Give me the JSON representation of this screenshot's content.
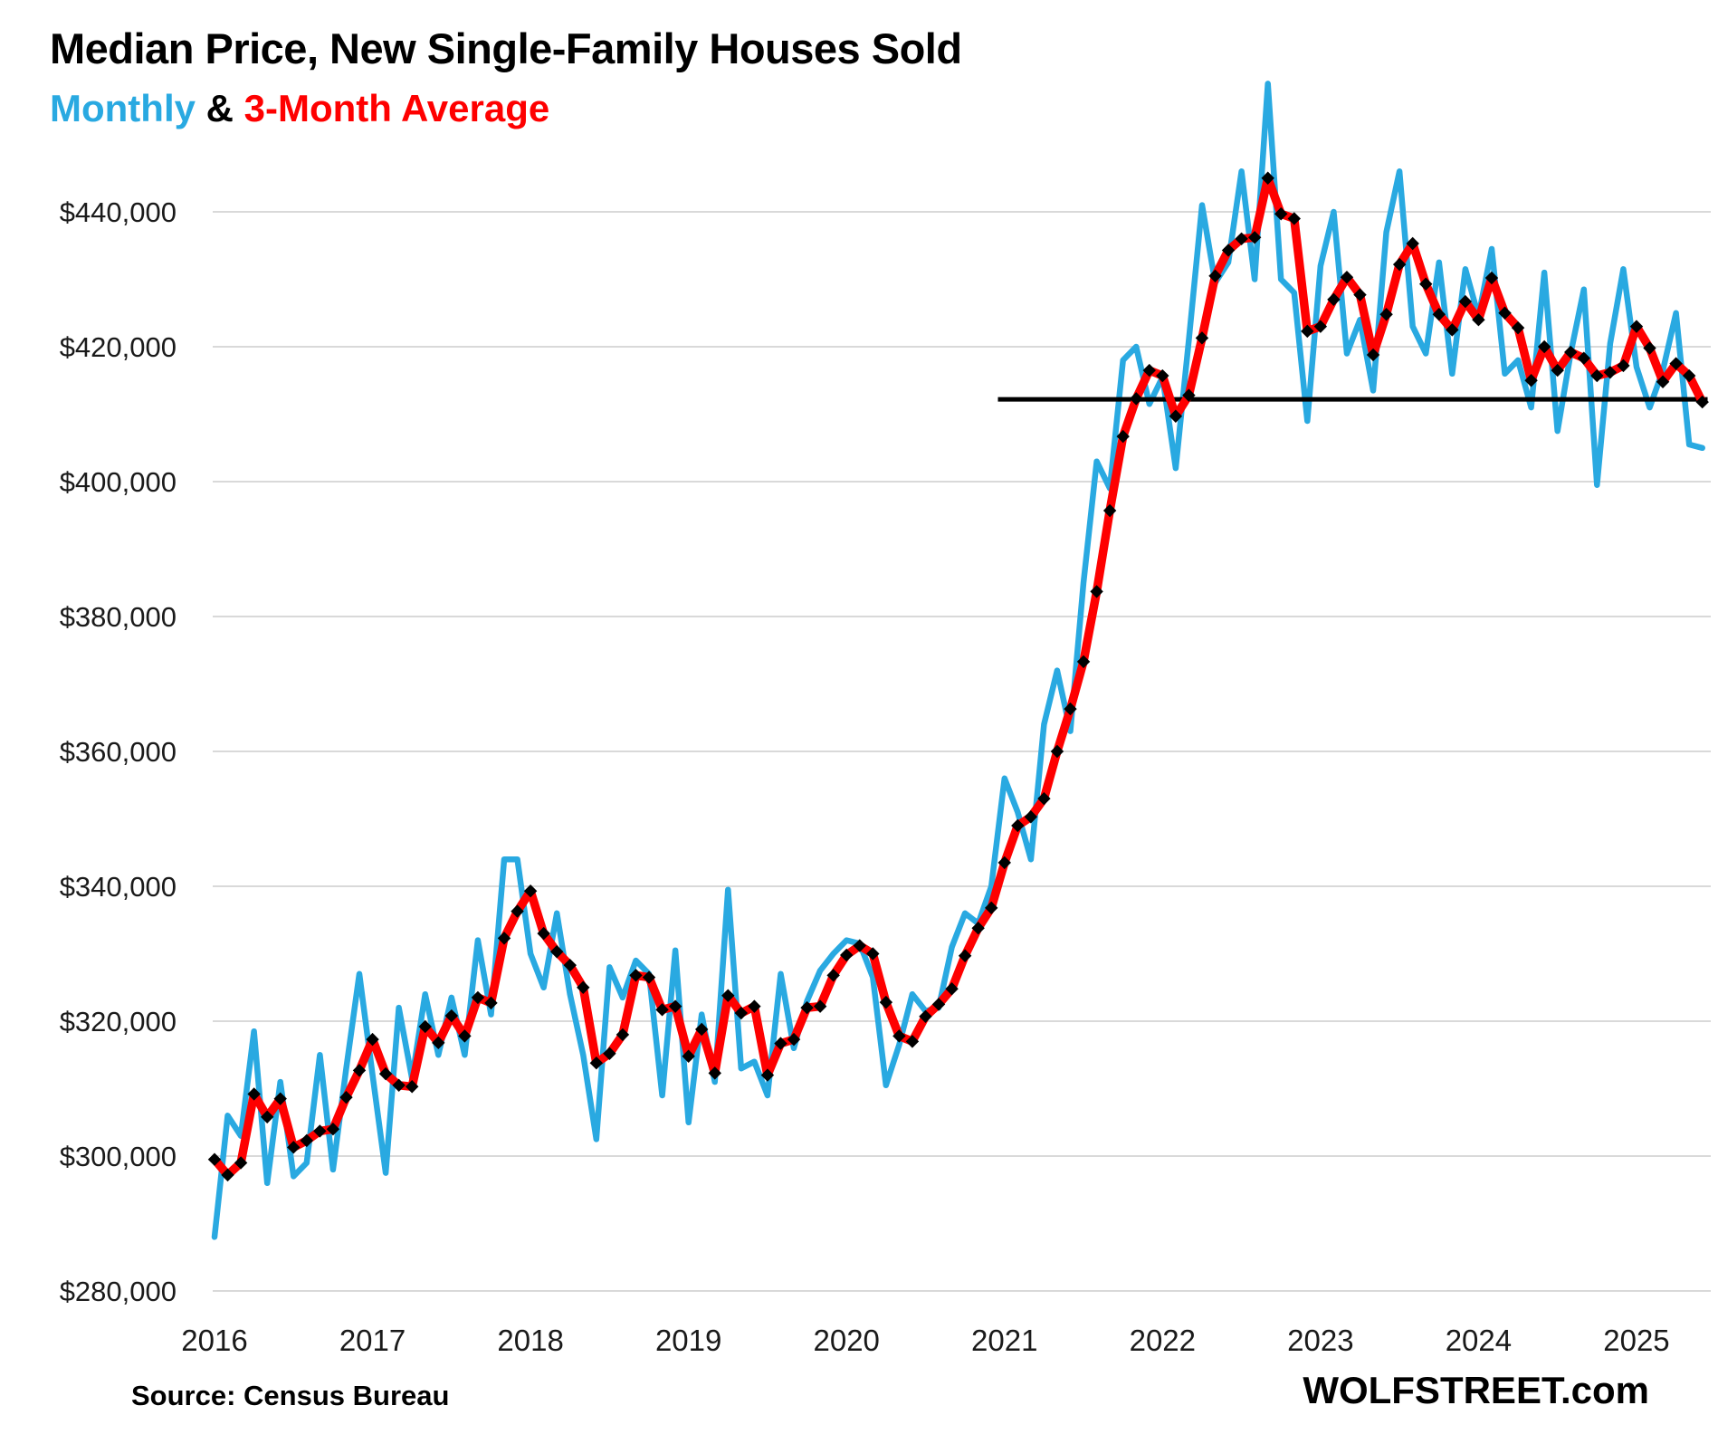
{
  "header": {
    "title": "Median Price, New Single-Family Houses Sold",
    "subtitle_monthly": "Monthly",
    "subtitle_separator": " & ",
    "subtitle_average": "3-Month Average"
  },
  "footer": {
    "source_note": "Source: Census Bureau",
    "branding": "WOLFSTREET.com"
  },
  "colors": {
    "monthly_line": "#29a9e1",
    "average_line": "#fe0000",
    "marker": "#000000",
    "gridline": "#d9d9d9",
    "reference_line": "#000000",
    "text": "#1a1a1a"
  },
  "chart_data": {
    "type": "line",
    "title": "Median Price, New Single-Family Houses Sold",
    "subtitle": "Monthly & 3-Month Average",
    "x_start": "2016-01",
    "x_end": "2025-06",
    "months_per_point": 1,
    "x_tick_labels": [
      "2016",
      "2017",
      "2018",
      "2019",
      "2020",
      "2021",
      "2022",
      "2023",
      "2024",
      "2025"
    ],
    "y_axis": {
      "tick_values_thousands": [
        280,
        300,
        320,
        340,
        360,
        380,
        400,
        420,
        440
      ],
      "tick_labels": [
        "$280,000",
        "$300,000",
        "$320,000",
        "$340,000",
        "$360,000",
        "$380,000",
        "$400,000",
        "$420,000",
        "$440,000"
      ],
      "ylim_thousands": [
        280,
        462
      ],
      "grid": true
    },
    "legend_position": "subtitle-inline",
    "reference_line": {
      "value_thousands": 412.2,
      "from_month_index": 59.5,
      "to_month_index": 113.4
    },
    "series": [
      {
        "name": "Monthly",
        "color": "#29a9e1",
        "values_thousands": [
          288,
          306,
          303,
          318.5,
          296,
          311,
          297,
          299,
          315,
          298,
          313,
          327,
          312,
          297.5,
          322,
          311.5,
          324,
          315,
          323.5,
          315,
          332,
          321,
          344,
          344,
          330,
          325,
          336,
          324,
          315,
          302.5,
          328,
          323.5,
          329,
          327,
          309,
          330.5,
          305,
          321,
          311,
          339.5,
          313,
          314,
          309,
          327,
          316,
          323,
          327.5,
          330,
          332,
          331.5,
          326.5,
          310.5,
          316.5,
          324,
          321.5,
          322,
          331,
          336,
          334.5,
          340,
          356,
          351,
          344,
          364,
          372,
          363,
          385,
          403,
          399,
          418,
          420,
          411.5,
          415.5,
          402,
          421,
          441,
          429.5,
          432.5,
          446,
          430,
          459,
          430,
          428,
          409,
          432,
          440,
          419,
          424,
          413.5,
          437,
          446,
          423,
          419,
          432.5,
          416,
          431.5,
          424.5,
          434.5,
          416,
          418,
          411,
          431,
          407.5,
          419,
          428.5,
          399.5,
          420.5,
          431.5,
          417,
          411,
          416.5,
          425,
          405.5,
          405
        ]
      },
      {
        "name": "3-Month Average",
        "color": "#fe0000",
        "marker": "black-diamond",
        "values_thousands": [
          299.5,
          297.2,
          299.0,
          309.2,
          305.8,
          308.5,
          301.3,
          302.3,
          303.7,
          304.0,
          308.7,
          312.7,
          317.3,
          312.2,
          310.5,
          310.3,
          319.2,
          316.8,
          320.8,
          317.8,
          323.5,
          322.7,
          332.3,
          336.3,
          339.3,
          333.0,
          330.3,
          328.3,
          325.0,
          313.8,
          315.2,
          318.0,
          326.8,
          326.5,
          321.7,
          322.2,
          314.8,
          318.8,
          312.3,
          323.8,
          321.2,
          322.2,
          312.0,
          316.7,
          317.3,
          322.0,
          322.2,
          326.8,
          329.8,
          331.2,
          330.0,
          322.8,
          317.8,
          317.0,
          320.7,
          322.5,
          324.8,
          329.7,
          333.8,
          336.8,
          343.5,
          349.0,
          350.3,
          353.0,
          360.0,
          366.3,
          373.3,
          383.7,
          395.7,
          406.7,
          412.3,
          416.5,
          415.7,
          409.7,
          412.8,
          421.3,
          430.5,
          434.3,
          436.0,
          436.2,
          445.0,
          439.7,
          439.0,
          422.3,
          423.0,
          427.0,
          430.3,
          427.7,
          418.8,
          424.8,
          432.2,
          435.3,
          429.3,
          424.8,
          422.5,
          426.7,
          424.0,
          430.2,
          425.0,
          422.8,
          415.0,
          420.0,
          416.5,
          419.2,
          418.3,
          415.7,
          416.2,
          417.2,
          423.0,
          419.8,
          414.8,
          417.5,
          415.7,
          411.8
        ]
      }
    ]
  }
}
